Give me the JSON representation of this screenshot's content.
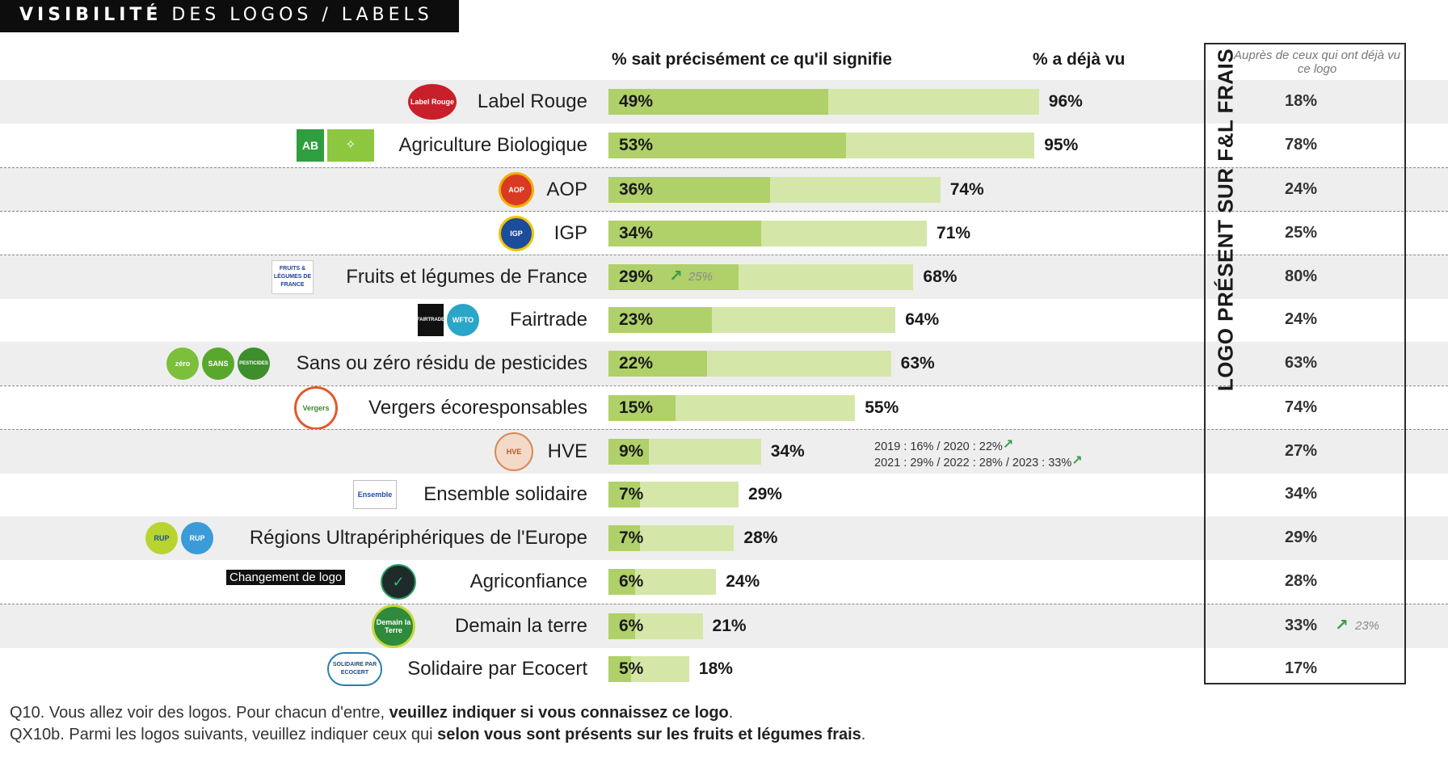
{
  "header": {
    "title_bold": "VISIBILITÉ",
    "title_rest": " DES LOGOS / LABELS"
  },
  "column_headers": {
    "knows": "% sait précisément ce qu'il signifie",
    "seen": "% a déjà vu",
    "among_seen": "Auprès de ceux qui ont déjà vu ce logo",
    "vertical": "LOGO PRÉSENT SUR F&L FRAIS"
  },
  "colors": {
    "dark_bar": "#b0d06a",
    "light_bar": "#d4e7a8",
    "alt_row": "#eeeeee",
    "arrow": "#3a9a4a"
  },
  "chart_data": {
    "type": "bar",
    "categories": [
      "Label Rouge",
      "Agriculture Biologique",
      "AOP",
      "IGP",
      "Fruits et légumes de France",
      "Fairtrade",
      "Sans ou zéro résidu de pesticides",
      "Vergers écoresponsables",
      "HVE",
      "Ensemble solidaire",
      "Régions Ultrapériphériques de l'Europe",
      "Agriconfiance",
      "Demain la terre",
      "Solidaire par Ecocert"
    ],
    "series": [
      {
        "name": "% sait précisément ce qu'il signifie",
        "values": [
          49,
          53,
          36,
          34,
          29,
          23,
          22,
          15,
          9,
          7,
          7,
          6,
          6,
          5
        ]
      },
      {
        "name": "% a déjà vu",
        "values": [
          96,
          95,
          74,
          71,
          68,
          64,
          63,
          55,
          34,
          29,
          28,
          24,
          21,
          18
        ]
      },
      {
        "name": "LOGO PRÉSENT SUR F&L FRAIS",
        "values": [
          18,
          78,
          24,
          25,
          80,
          24,
          63,
          74,
          27,
          34,
          29,
          28,
          33,
          17
        ]
      }
    ],
    "labels_knows": [
      "49%",
      "53%",
      "36%",
      "34%",
      "29%",
      "23%",
      "22%",
      "15%",
      "9%",
      "7%",
      "7%",
      "6%",
      "6%",
      "5%"
    ],
    "labels_seen": [
      "96%",
      "95%",
      "74%",
      "71%",
      "68%",
      "64%",
      "63%",
      "55%",
      "34%",
      "29%",
      "28%",
      "24%",
      "21%",
      "18%"
    ],
    "labels_present": [
      "18%",
      "78%",
      "24%",
      "25%",
      "80%",
      "24%",
      "63%",
      "74%",
      "27%",
      "34%",
      "29%",
      "28%",
      "33%",
      "17%"
    ],
    "xlim": [
      0,
      100
    ],
    "annotations": {
      "fruits_previous": "25%",
      "demain_previous": "23%",
      "hve_line1": "2019 : 16% / 2020 : 22%",
      "hve_line2": "2021 : 29% / 2022 : 28% / 2023 : 33%"
    }
  },
  "logos": {
    "label_rouge": "Label Rouge",
    "ab": "AB",
    "aop": "AOP",
    "igp": "IGP",
    "fruits": "FRUITS & LÉGUMES DE FRANCE",
    "fairtrade": "FAIRTRADE",
    "wfto": "WFTO",
    "zero": "zéro",
    "sans": "SANS",
    "pesticides": "PESTICIDES",
    "vergers": "Vergers",
    "hve": "HVE",
    "ensemble": "Ensemble",
    "rup": "RUP",
    "agri": "✓",
    "demain": "Demain la Terre",
    "ecocert": "SOLIDAIRE PAR ECOCERT"
  },
  "logo_change_note": "Changement de logo",
  "footnotes": {
    "q10_prefix": "Q10. Vous allez voir des logos. Pour chacun d'entre, ",
    "q10_bold": "veuillez indiquer si vous connaissez ce logo",
    "q10_suffix": ".",
    "qx10b_prefix": "QX10b. Parmi les logos suivants, veuillez indiquer ceux qui ",
    "qx10b_bold": "selon vous sont présents sur les fruits et légumes frais",
    "qx10b_suffix": "."
  }
}
